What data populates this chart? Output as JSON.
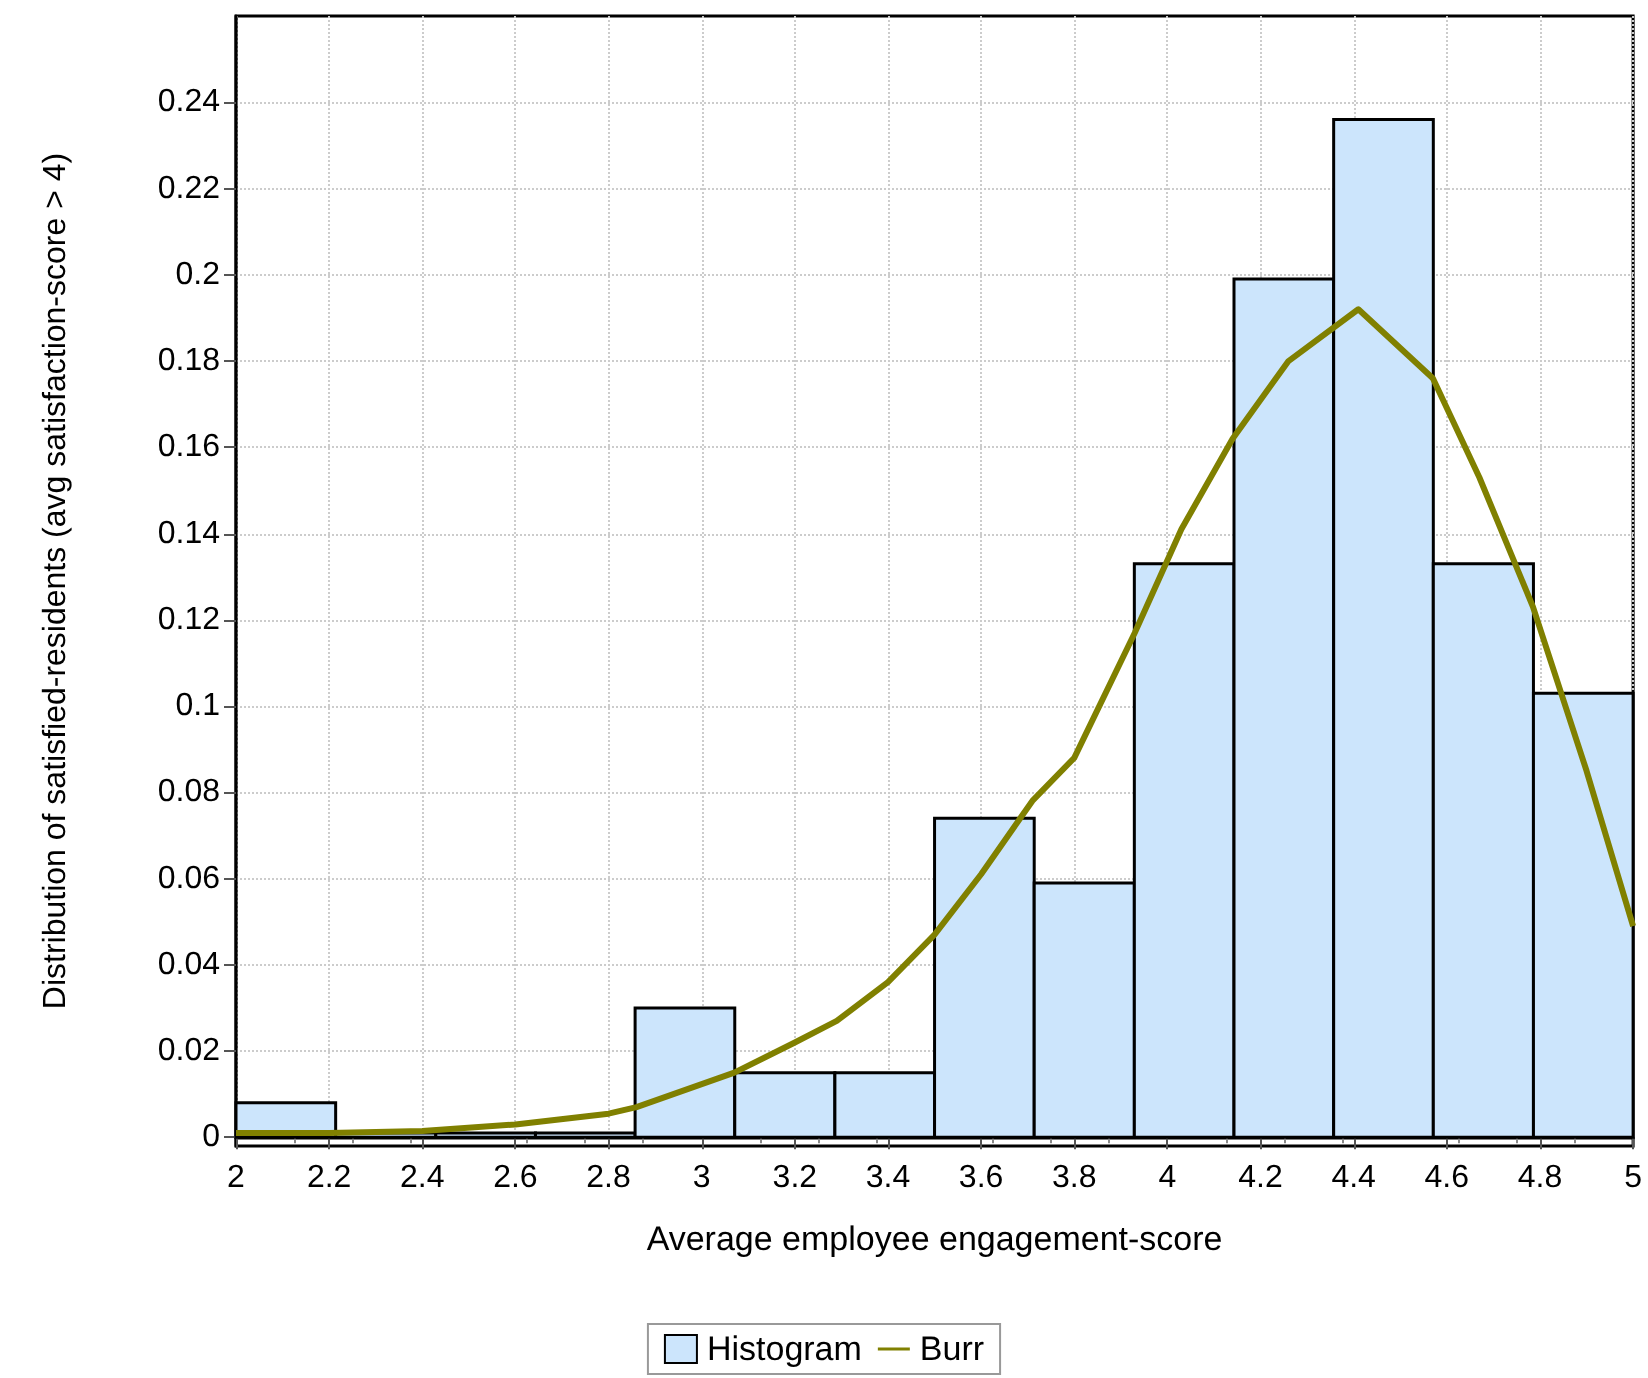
{
  "chart_data": {
    "type": "histogram",
    "xlabel": "Average employee engagement-score",
    "ylabel": "Distribution of satisfied-residents (avg satisfaction-score > 4)",
    "xlim": [
      2,
      5
    ],
    "xticks": [
      2,
      2.2,
      2.4,
      2.6,
      2.8,
      3,
      3.2,
      3.4,
      3.6,
      3.8,
      4,
      4.2,
      4.4,
      4.6,
      4.8,
      5
    ],
    "ylim": [
      -0.002,
      0.26
    ],
    "yticks": [
      0,
      0.02,
      0.04,
      0.06,
      0.08,
      0.1,
      0.12,
      0.14,
      0.16,
      0.18,
      0.2,
      0.22,
      0.24
    ],
    "grid": true,
    "legend": "bottom",
    "marker": "none",
    "line_style": "solid",
    "series": [
      {
        "name": "Histogram",
        "color": "#cce5fc",
        "bins": [
          2,
          2.214,
          2.429,
          2.643,
          2.857,
          3.071,
          3.286,
          3.5,
          3.714,
          3.929,
          4.143,
          4.357,
          4.571,
          4.786,
          5
        ],
        "values": [
          0.008,
          0.001,
          0.001,
          0.001,
          0.03,
          0.015,
          0.015,
          0.074,
          0.059,
          0.133,
          0.199,
          0.236,
          0.133,
          0.103
        ]
      },
      {
        "name": "Burr",
        "type": "line",
        "color": "#808000",
        "x": [
          2,
          2.2,
          2.4,
          2.6,
          2.8,
          2.86,
          3.07,
          3.2,
          3.29,
          3.4,
          3.5,
          3.6,
          3.71,
          3.8,
          3.93,
          4.03,
          4.14,
          4.26,
          4.41,
          4.57,
          4.67,
          4.785,
          4.9,
          5
        ],
        "values": [
          0.001,
          0.001,
          0.0015,
          0.003,
          0.0055,
          0.007,
          0.015,
          0.022,
          0.027,
          0.036,
          0.047,
          0.061,
          0.078,
          0.088,
          0.117,
          0.141,
          0.162,
          0.18,
          0.192,
          0.176,
          0.153,
          0.123,
          0.085,
          0.049
        ]
      }
    ]
  }
}
